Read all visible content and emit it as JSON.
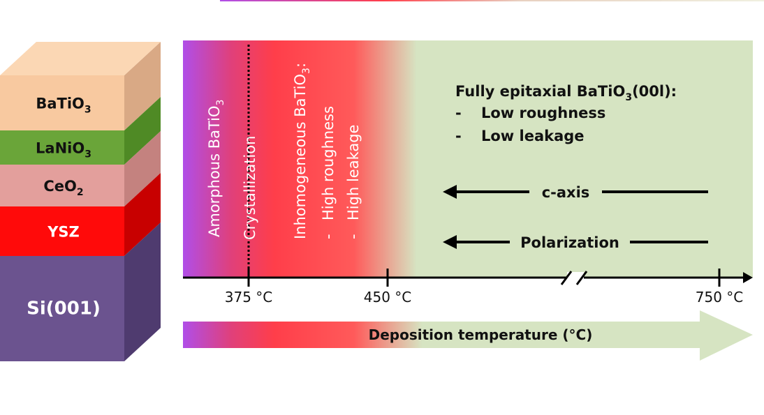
{
  "layers": [
    {
      "base": "BaTiO",
      "sub": "3",
      "front": "#f8c9a0",
      "top": "#fbd7b4",
      "side": "#d9a985",
      "text_color": "#111111"
    },
    {
      "base": "LaNiO",
      "sub": "3",
      "front": "#6aa539",
      "top": "#82bc4f",
      "side": "#4f8a25",
      "text_color": "#111111"
    },
    {
      "base": "CeO",
      "sub": "2",
      "front": "#e39f9c",
      "top": "#edb4b1",
      "side": "#c4827f",
      "text_color": "#111111"
    },
    {
      "base": "YSZ",
      "sub": "",
      "front": "#ff0a0a",
      "top": "#ff3a3a",
      "side": "#c80000",
      "text_color": "#ffffff"
    },
    {
      "base": "Si(001)",
      "sub": "",
      "front": "#6b538f",
      "top": "#806aa3",
      "side": "#4f3b6f",
      "text_color": "#ffffff"
    }
  ],
  "zones": {
    "amorphous": {
      "text": "Amorphous BaTiO",
      "sub": "3"
    },
    "crystallization": {
      "text": "Crystallization"
    },
    "inhomogeneous": {
      "title": "Inhomogeneous BaTiO",
      "sub": "3",
      "suffix": ":",
      "items": [
        "High roughness",
        "High leakage"
      ]
    },
    "epitaxial": {
      "title": "Fully epitaxial BaTiO",
      "sub": "3",
      "suffix": "(00l):",
      "items": [
        "Low roughness",
        "Low leakage"
      ]
    }
  },
  "arrows": {
    "caxis": "c-axis",
    "polarization": "Polarization"
  },
  "axis": {
    "ticks": [
      "375 °C",
      "450 °C",
      "750 °C"
    ]
  },
  "bottom_arrow_label": "Deposition temperature (°C)",
  "colors": {
    "purple": "#b04ee8",
    "red": "#ff3e4a",
    "green": "#d6e4c2",
    "black": "#000000"
  }
}
